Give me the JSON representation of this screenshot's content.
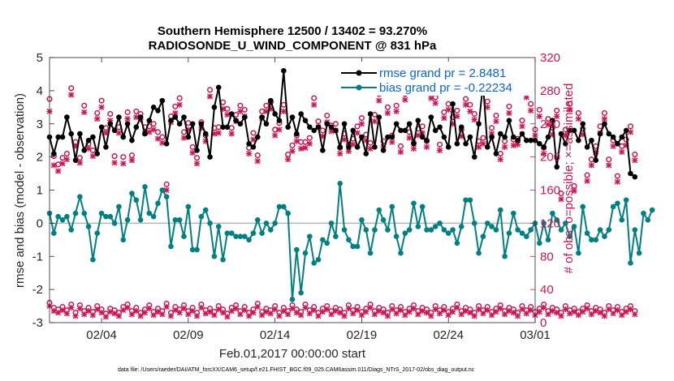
{
  "chart_data": {
    "type": "line",
    "title_line1": "Southern Hemisphere 12500 / 13402 = 93.270%",
    "title_line2": "RADIOSONDE_U_WIND_COMPONENT @ 831 hPa",
    "xlabel": "Feb.01,2017 00:00:00 start",
    "ylabel_left": "rmse and bias (model - observation)",
    "ylabel_right": "# of obs: o=possible; ×=assimilated",
    "footer": "data file: /Users/raeder/DAI/ATM_forcXX/CAM6_setup/f.e21.FHIST_BGC.f09_025.CAM6assim.011/Diags_NTrS_2017-02/obs_diag_output.nc",
    "xlim": [
      0.5,
      28.5
    ],
    "ylim_left": [
      -3,
      5
    ],
    "ylim_right": [
      0,
      320
    ],
    "x_ticks": [
      3.5,
      8.5,
      13.5,
      18.5,
      23.5,
      28.5
    ],
    "x_tick_labels": [
      "02/04",
      "02/09",
      "02/14",
      "02/19",
      "02/24",
      "03/01"
    ],
    "y_left_ticks": [
      -3,
      -2,
      -1,
      0,
      1,
      2,
      3,
      4,
      5
    ],
    "y_left_tick_labels": [
      "-3",
      "-2",
      "-1",
      "0",
      "1",
      "2",
      "3",
      "4",
      "5"
    ],
    "y_right_ticks": [
      0,
      40,
      80,
      120,
      160,
      200,
      240,
      280,
      320
    ],
    "y_right_tick_labels": [
      "0",
      "40",
      "80",
      "120",
      "160",
      "200",
      "240",
      "280",
      "320"
    ],
    "legend": [
      {
        "label": "rmse grand pr = 2.8481",
        "color": "#000000"
      },
      {
        "label": "bias grand pr = -0.22234",
        "color": "#008080"
      }
    ],
    "colors": {
      "rmse": "#000000",
      "bias": "#008080",
      "obs": "#cc1452",
      "zero_line": "#b4b4b4"
    },
    "x_start": 0.5,
    "x_step": 0.25,
    "series": [
      {
        "name": "rmse",
        "values": [
          2.6,
          2.1,
          2.6,
          2.6,
          3.2,
          2.7,
          1.9,
          2.7,
          2.2,
          2.5,
          2.6,
          2.1,
          2.9,
          2.3,
          3.0,
          2.8,
          3.2,
          2.6,
          3.0,
          2.5,
          2.9,
          3.2,
          2.7,
          3.1,
          3.5,
          3.4,
          3.7,
          2.4,
          3.1,
          3.2,
          3.0,
          3.2,
          2.6,
          3.0,
          2.2,
          3.0,
          2.7,
          2.0,
          3.5,
          4.1,
          2.9,
          2.9,
          3.3,
          3.1,
          3.0,
          3.2,
          2.4,
          2.3,
          2.6,
          3.2,
          3.0,
          3.7,
          3.3,
          3.1,
          4.6,
          2.9,
          3.2,
          2.7,
          3.3,
          3.1,
          2.9,
          2.8,
          2.9,
          2.2,
          3.0,
          2.9,
          2.8,
          2.3,
          3.0,
          2.3,
          2.8,
          2.3,
          2.6,
          2.1,
          3.3,
          2.3,
          3.2,
          2.2,
          2.6,
          2.6,
          3.0,
          2.8,
          2.8,
          3.0,
          2.4,
          3.1,
          2.6,
          2.5,
          3.2,
          2.8,
          2.9,
          2.6,
          2.3,
          3.6,
          2.4,
          2.9,
          2.4,
          2.6,
          2.0,
          3.0,
          4.2,
          2.3,
          2.6,
          2.1,
          2.7,
          2.6,
          3.1,
          2.6,
          2.5,
          2.7,
          2.5,
          2.5,
          2.5,
          2.4,
          2.3,
          2.6,
          3.1,
          1.7,
          2.7,
          2.4,
          2.8,
          2.8,
          2.5,
          3.0,
          2.3,
          2.5,
          1.9,
          2.7,
          3.0,
          2.7,
          2.6,
          2.4,
          2.6,
          2.8,
          1.5,
          1.4
        ]
      },
      {
        "name": "bias",
        "values": [
          0.3,
          -0.3,
          0.2,
          0.1,
          0.2,
          -0.2,
          0.3,
          0.8,
          0.3,
          -0.1,
          -1.1,
          -0.3,
          0.3,
          0.2,
          0.2,
          0.0,
          0.5,
          -0.5,
          0.1,
          0.9,
          0.7,
          0.1,
          1.1,
          0.3,
          0.2,
          0.6,
          1.0,
          0.8,
          -0.7,
          0.1,
          0.1,
          -0.4,
          0.5,
          -0.8,
          -0.8,
          0.2,
          0.4,
          0.0,
          -1.0,
          -0.1,
          -1.1,
          -0.3,
          -0.3,
          -0.4,
          -0.4,
          -0.4,
          -0.5,
          -0.3,
          0.1,
          -0.3,
          0.0,
          -0.2,
          0.0,
          0.5,
          0.5,
          0.3,
          -2.3,
          -0.8,
          -2.1,
          -0.9,
          -0.4,
          -1.2,
          -1.1,
          -0.5,
          -0.6,
          0.0,
          -0.4,
          1.2,
          -0.2,
          -0.5,
          -0.7,
          -0.7,
          0.1,
          -0.2,
          -0.9,
          -0.2,
          0.4,
          0.1,
          -0.2,
          0.5,
          -0.4,
          -0.9,
          -0.3,
          -0.2,
          0.6,
          -0.1,
          0.5,
          -0.2,
          -0.2,
          -0.1,
          0.0,
          -0.2,
          -0.3,
          -0.2,
          -0.6,
          -0.1,
          0.7,
          0.7,
          0.0,
          -0.9,
          -0.4,
          0.0,
          -0.1,
          -0.2,
          0.4,
          -1.0,
          -0.3,
          0.3,
          -0.2,
          -0.3,
          -0.4,
          -0.2,
          0.0,
          -0.6,
          0.0,
          -0.5,
          0.3,
          0.1,
          -0.2,
          0.0,
          -0.4,
          -0.1,
          -0.9,
          0.5,
          -0.3,
          -0.5,
          -0.5,
          -0.2,
          -0.4,
          -0.2,
          0.5,
          0.6,
          0.1,
          0.7,
          -1.2,
          -0.2,
          -0.9,
          0.3,
          0.1,
          0.4
        ]
      },
      {
        "name": "obs_possible",
        "values": [
          270,
          201,
          191,
          199,
          204,
          283,
          218,
          199,
          262,
          216,
          208,
          253,
          268,
          235,
          252,
          201,
          236,
          200,
          254,
          202,
          255,
          252,
          236,
          237,
          240,
          230,
          224,
          167,
          249,
          261,
          271,
          230,
          241,
          212,
          199,
          242,
          226,
          281,
          235,
          236,
          266,
          258,
          235,
          251,
          262,
          257,
          211,
          229,
          202,
          255,
          262,
          266,
          233,
          241,
          263,
          203,
          214,
          226,
          218,
          218,
          223,
          271,
          243,
          232,
          250,
          238,
          240,
          211,
          228,
          215,
          222,
          237,
          247,
          227,
          217,
          251,
          276,
          219,
          260,
          226,
          262,
          213,
          276,
          230,
          217,
          234,
          237,
          219,
          279,
          272,
          215,
          254,
          264,
          248,
          256,
          233,
          270,
          263,
          252,
          219,
          223,
          267,
          235,
          250,
          204,
          219,
          261,
          221,
          222,
          244,
          279,
          264,
          233,
          257,
          211,
          246,
          235,
          256,
          156,
          233,
          264,
          165,
          253,
          234,
          178,
          197,
          213,
          237,
          253,
          197,
          220,
          177,
          213,
          221,
          237,
          203
        ]
      },
      {
        "name": "obs_assimilated",
        "values": [
          255,
          190,
          183,
          192,
          197,
          275,
          213,
          193,
          254,
          210,
          201,
          246,
          260,
          229,
          244,
          193,
          229,
          192,
          246,
          196,
          248,
          245,
          229,
          230,
          233,
          222,
          217,
          160,
          242,
          253,
          263,
          223,
          233,
          205,
          192,
          235,
          219,
          273,
          228,
          229,
          258,
          251,
          228,
          243,
          255,
          249,
          204,
          221,
          195,
          247,
          255,
          258,
          226,
          233,
          255,
          197,
          207,
          219,
          210,
          211,
          216,
          263,
          236,
          225,
          242,
          231,
          232,
          204,
          221,
          207,
          215,
          229,
          240,
          220,
          210,
          243,
          268,
          212,
          253,
          218,
          255,
          206,
          269,
          223,
          210,
          226,
          229,
          212,
          271,
          265,
          208,
          247,
          257,
          240,
          249,
          225,
          263,
          255,
          245,
          212,
          216,
          260,
          228,
          243,
          197,
          212,
          253,
          214,
          215,
          237,
          272,
          256,
          226,
          249,
          204,
          239,
          227,
          249,
          149,
          226,
          257,
          159,
          246,
          227,
          171,
          190,
          206,
          229,
          246,
          190,
          213,
          170,
          206,
          214,
          230,
          196
        ]
      },
      {
        "name": "obs_possible_low",
        "values": [
          24,
          18,
          16,
          19,
          15,
          22,
          12,
          21,
          14,
          18,
          13,
          20,
          16,
          11,
          17,
          15,
          12,
          19,
          22,
          14,
          18,
          12,
          16,
          21,
          13,
          17,
          14,
          23,
          12,
          19,
          16,
          21,
          14,
          18,
          12,
          22,
          15,
          17,
          13,
          20,
          16,
          11,
          18,
          21,
          14,
          19,
          12,
          16,
          23,
          13,
          17,
          15,
          20,
          12,
          18,
          14,
          21,
          16,
          13,
          22,
          15,
          19,
          12,
          17,
          20,
          14,
          18,
          16,
          12,
          21,
          15,
          19,
          13,
          17,
          22,
          14,
          18,
          16,
          12,
          20,
          15,
          19,
          13,
          17,
          21,
          14,
          18,
          16,
          12,
          20,
          15,
          19,
          13,
          17,
          22,
          14,
          18,
          16,
          12,
          20,
          15,
          19,
          13,
          17,
          21,
          14,
          18,
          16,
          12,
          20,
          15,
          19,
          13,
          17,
          22,
          14,
          18,
          16,
          12,
          20,
          15,
          17,
          13,
          17,
          21,
          14,
          18,
          16,
          12,
          20,
          15,
          19,
          13,
          17,
          20,
          14
        ]
      },
      {
        "name": "obs_assimilated_low",
        "values": [
          20,
          14,
          12,
          15,
          11,
          18,
          8,
          17,
          10,
          14,
          9,
          16,
          12,
          7,
          13,
          11,
          8,
          15,
          18,
          10,
          14,
          8,
          12,
          17,
          9,
          13,
          10,
          19,
          8,
          15,
          12,
          17,
          10,
          14,
          8,
          18,
          11,
          13,
          9,
          16,
          12,
          7,
          14,
          17,
          10,
          15,
          8,
          12,
          19,
          9,
          13,
          11,
          16,
          8,
          14,
          10,
          17,
          12,
          9,
          18,
          11,
          15,
          8,
          13,
          16,
          10,
          14,
          12,
          8,
          17,
          11,
          15,
          9,
          13,
          18,
          10,
          14,
          12,
          8,
          16,
          11,
          15,
          9,
          13,
          17,
          10,
          14,
          12,
          8,
          16,
          11,
          15,
          9,
          13,
          18,
          10,
          14,
          12,
          8,
          16,
          11,
          15,
          9,
          13,
          17,
          10,
          14,
          12,
          8,
          16,
          11,
          15,
          9,
          13,
          18,
          10,
          14,
          12,
          8,
          16,
          11,
          13,
          9,
          13,
          17,
          10,
          14,
          12,
          8,
          16,
          11,
          15,
          9,
          13,
          16,
          10
        ]
      }
    ]
  }
}
